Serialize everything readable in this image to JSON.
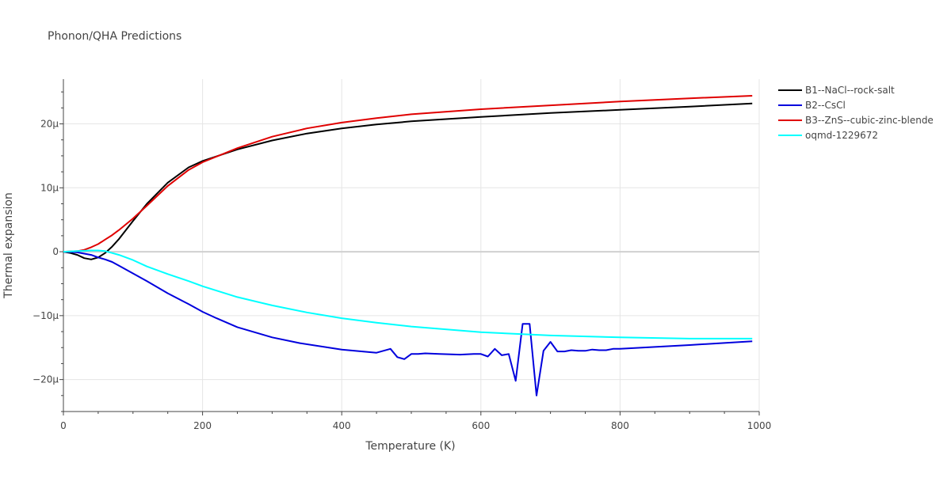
{
  "chart_data": {
    "type": "line",
    "title": "Phonon/QHA Predictions",
    "xlabel": "Temperature (K)",
    "ylabel": "Thermal expansion",
    "xlim": [
      0,
      1000
    ],
    "ylim": [
      -2.5e-05,
      2.7e-05
    ],
    "xticks": [
      {
        "value": 0,
        "label": "0"
      },
      {
        "value": 200,
        "label": "200"
      },
      {
        "value": 400,
        "label": "400"
      },
      {
        "value": 600,
        "label": "600"
      },
      {
        "value": 800,
        "label": "800"
      },
      {
        "value": 1000,
        "label": "1000"
      }
    ],
    "yticks": [
      {
        "value": 2e-05,
        "label": "20µ"
      },
      {
        "value": 1e-05,
        "label": "10µ"
      },
      {
        "value": 0,
        "label": "0"
      },
      {
        "value": -1e-05,
        "label": "−10µ"
      },
      {
        "value": -2e-05,
        "label": "−20µ"
      }
    ],
    "grid": true,
    "legend_position": "top-right",
    "series": [
      {
        "name": "B1--NaCl--rock-salt",
        "color": "#000000",
        "x": [
          0,
          10,
          20,
          30,
          40,
          50,
          60,
          70,
          80,
          100,
          120,
          150,
          180,
          200,
          250,
          300,
          350,
          400,
          450,
          500,
          600,
          700,
          800,
          900,
          990
        ],
        "y": [
          0,
          -2e-07,
          -5e-07,
          -1e-06,
          -1.2e-06,
          -9e-07,
          -2e-07,
          8e-07,
          2e-06,
          4.8e-06,
          7.5e-06,
          1.08e-05,
          1.32e-05,
          1.42e-05,
          1.6e-05,
          1.74e-05,
          1.85e-05,
          1.93e-05,
          1.99e-05,
          2.04e-05,
          2.11e-05,
          2.17e-05,
          2.22e-05,
          2.27e-05,
          2.32e-05
        ]
      },
      {
        "name": "B2--CsCl",
        "color": "#0000dd",
        "x": [
          0,
          20,
          40,
          50,
          60,
          70,
          80,
          100,
          120,
          150,
          180,
          200,
          220,
          250,
          300,
          340,
          400,
          450,
          470,
          480,
          490,
          500,
          510,
          520,
          540,
          570,
          590,
          600,
          610,
          620,
          630,
          640,
          650,
          660,
          670,
          680,
          690,
          700,
          710,
          720,
          730,
          740,
          750,
          760,
          770,
          780,
          790,
          800,
          900,
          990
        ],
        "y": [
          0,
          -1e-07,
          -5e-07,
          -9e-07,
          -1.2e-06,
          -1.6e-06,
          -2.2e-06,
          -3.4e-06,
          -4.6e-06,
          -6.5e-06,
          -8.2e-06,
          -9.4e-06,
          -1.04e-05,
          -1.18e-05,
          -1.34e-05,
          -1.43e-05,
          -1.53e-05,
          -1.58e-05,
          -1.52e-05,
          -1.65e-05,
          -1.68e-05,
          -1.6e-05,
          -1.6e-05,
          -1.59e-05,
          -1.6e-05,
          -1.61e-05,
          -1.6e-05,
          -1.6e-05,
          -1.64e-05,
          -1.52e-05,
          -1.62e-05,
          -1.6e-05,
          -2.02e-05,
          -1.13e-05,
          -1.13e-05,
          -2.25e-05,
          -1.55e-05,
          -1.41e-05,
          -1.56e-05,
          -1.56e-05,
          -1.54e-05,
          -1.55e-05,
          -1.55e-05,
          -1.53e-05,
          -1.54e-05,
          -1.54e-05,
          -1.52e-05,
          -1.52e-05,
          -1.46e-05,
          -1.4e-05
        ]
      },
      {
        "name": "B3--ZnS--cubic-zinc-blende",
        "color": "#e00000",
        "x": [
          0,
          20,
          30,
          40,
          50,
          60,
          70,
          80,
          100,
          120,
          150,
          180,
          200,
          250,
          300,
          350,
          400,
          450,
          500,
          600,
          700,
          800,
          900,
          990
        ],
        "y": [
          0,
          1e-07,
          3e-07,
          7e-07,
          1.2e-06,
          1.9e-06,
          2.6e-06,
          3.4e-06,
          5.2e-06,
          7.2e-06,
          1.03e-05,
          1.28e-05,
          1.4e-05,
          1.62e-05,
          1.8e-05,
          1.93e-05,
          2.02e-05,
          2.09e-05,
          2.15e-05,
          2.23e-05,
          2.29e-05,
          2.35e-05,
          2.4e-05,
          2.44e-05
        ]
      },
      {
        "name": "oqmd-1229672",
        "color": "#00ffff",
        "x": [
          0,
          20,
          40,
          50,
          60,
          70,
          80,
          100,
          120,
          150,
          180,
          200,
          250,
          300,
          350,
          400,
          450,
          500,
          600,
          700,
          800,
          900,
          990
        ],
        "y": [
          0,
          1e-07,
          2e-07,
          2e-07,
          1e-07,
          -2e-07,
          -5e-07,
          -1.3e-06,
          -2.3e-06,
          -3.5e-06,
          -4.6e-06,
          -5.4e-06,
          -7.1e-06,
          -8.4e-06,
          -9.5e-06,
          -1.04e-05,
          -1.11e-05,
          -1.17e-05,
          -1.26e-05,
          -1.31e-05,
          -1.34e-05,
          -1.36e-05,
          -1.36e-05
        ]
      }
    ]
  }
}
